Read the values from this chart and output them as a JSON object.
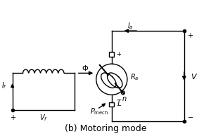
{
  "title": "(b) Motoring mode",
  "title_fontsize": 9,
  "bg_color": "#ffffff",
  "line_color": "#000000",
  "fig_width": 3.0,
  "fig_height": 1.94,
  "dpi": 100,
  "labels": {
    "If": "I_f",
    "Vf": "V_f",
    "Phi": "Φ",
    "Ia": "I_a",
    "Ra": "R_a",
    "V": "V",
    "n": "n",
    "T": "T",
    "Pmech": "P_mech",
    "plus": "+",
    "minus": "−"
  }
}
